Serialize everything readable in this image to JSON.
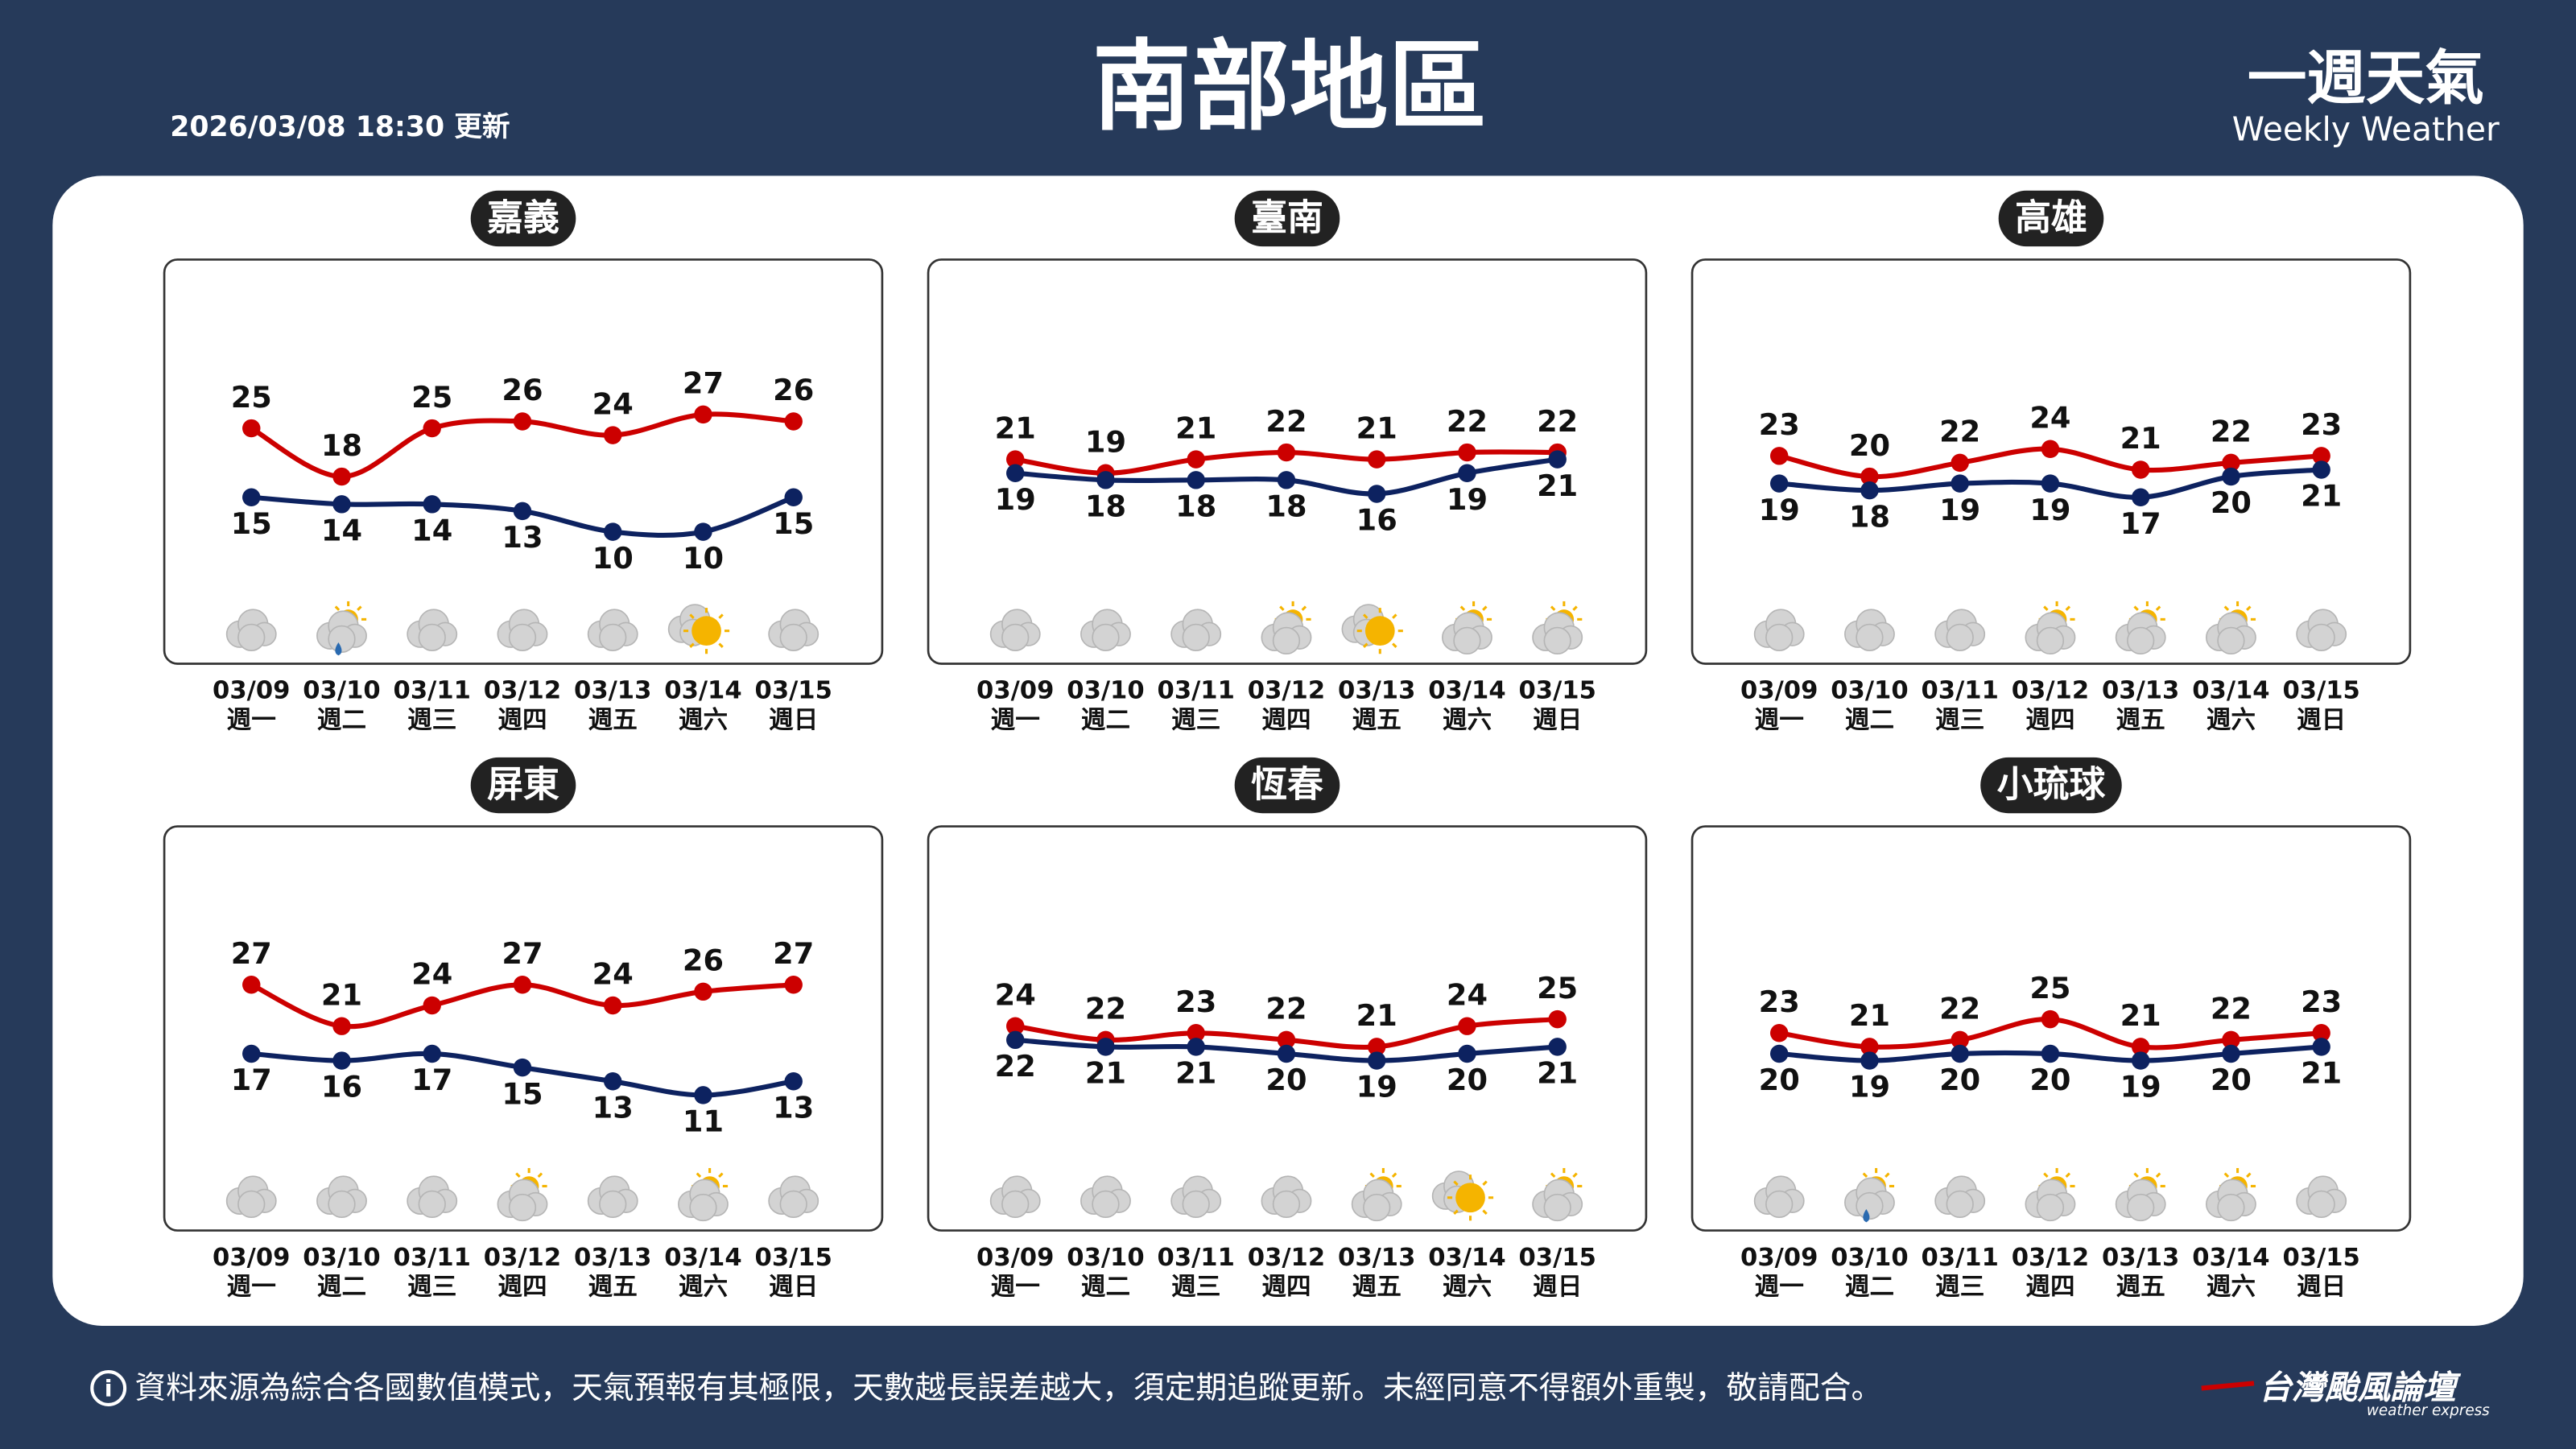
{
  "header": {
    "title": "南部地區",
    "updated": "2026/03/08 18:30 更新",
    "brand": "一週天氣",
    "brand_en": "Weekly Weather"
  },
  "footer": {
    "note": "資料來源為綜合各國數值模式，天氣預報有其極限，天數越長誤差越大，須定期追蹤更新。未經同意不得額外重製，敬請配合。",
    "brand": "台灣颱風論壇",
    "brand_en": "weather express"
  },
  "chart_data": [
    {
      "type": "line",
      "title": "嘉義",
      "categories": [
        "03/09",
        "03/10",
        "03/11",
        "03/12",
        "03/13",
        "03/14",
        "03/15"
      ],
      "weekdays": [
        "週一",
        "週二",
        "週三",
        "週四",
        "週五",
        "週六",
        "週日"
      ],
      "series": [
        {
          "color": "#cc0000",
          "values": [
            25,
            18,
            25,
            26,
            24,
            27,
            26
          ]
        },
        {
          "color": "#0d2260",
          "values": [
            15,
            14,
            14,
            13,
            10,
            10,
            15
          ]
        }
      ]
    },
    {
      "type": "line",
      "title": "臺南",
      "categories": [
        "03/09",
        "03/10",
        "03/11",
        "03/12",
        "03/13",
        "03/14",
        "03/15"
      ],
      "weekdays": [
        "週一",
        "週二",
        "週三",
        "週四",
        "週五",
        "週六",
        "週日"
      ],
      "series": [
        {
          "color": "#cc0000",
          "values": [
            21,
            19,
            21,
            22,
            21,
            22,
            22
          ]
        },
        {
          "color": "#0d2260",
          "values": [
            19,
            18,
            18,
            18,
            16,
            19,
            21
          ]
        }
      ]
    },
    {
      "type": "line",
      "title": "高雄",
      "categories": [
        "03/09",
        "03/10",
        "03/11",
        "03/12",
        "03/13",
        "03/14",
        "03/15"
      ],
      "weekdays": [
        "週一",
        "週二",
        "週三",
        "週四",
        "週五",
        "週六",
        "週日"
      ],
      "series": [
        {
          "color": "#cc0000",
          "values": [
            23,
            20,
            22,
            24,
            21,
            22,
            23
          ]
        },
        {
          "color": "#0d2260",
          "values": [
            19,
            18,
            19,
            19,
            17,
            20,
            21
          ]
        }
      ]
    },
    {
      "type": "line",
      "title": "屏東",
      "categories": [
        "03/09",
        "03/10",
        "03/11",
        "03/12",
        "03/13",
        "03/14",
        "03/15"
      ],
      "weekdays": [
        "週一",
        "週二",
        "週三",
        "週四",
        "週五",
        "週六",
        "週日"
      ],
      "series": [
        {
          "color": "#cc0000",
          "values": [
            27,
            21,
            24,
            27,
            24,
            26,
            27
          ]
        },
        {
          "color": "#0d2260",
          "values": [
            17,
            16,
            17,
            15,
            13,
            11,
            13
          ]
        }
      ]
    },
    {
      "type": "line",
      "title": "恆春",
      "categories": [
        "03/09",
        "03/10",
        "03/11",
        "03/12",
        "03/13",
        "03/14",
        "03/15"
      ],
      "weekdays": [
        "週一",
        "週二",
        "週三",
        "週四",
        "週五",
        "週六",
        "週日"
      ],
      "series": [
        {
          "color": "#cc0000",
          "values": [
            24,
            22,
            23,
            22,
            21,
            24,
            25
          ]
        },
        {
          "color": "#0d2260",
          "values": [
            22,
            21,
            21,
            20,
            19,
            20,
            21
          ]
        }
      ]
    },
    {
      "type": "line",
      "title": "小琉球",
      "categories": [
        "03/09",
        "03/10",
        "03/11",
        "03/12",
        "03/13",
        "03/14",
        "03/15"
      ],
      "weekdays": [
        "週一",
        "週二",
        "週三",
        "週四",
        "週五",
        "週六",
        "週日"
      ],
      "series": [
        {
          "color": "#cc0000",
          "values": [
            23,
            21,
            22,
            25,
            21,
            22,
            23
          ]
        },
        {
          "color": "#0d2260",
          "values": [
            20,
            19,
            20,
            20,
            19,
            20,
            21
          ]
        }
      ]
    }
  ]
}
